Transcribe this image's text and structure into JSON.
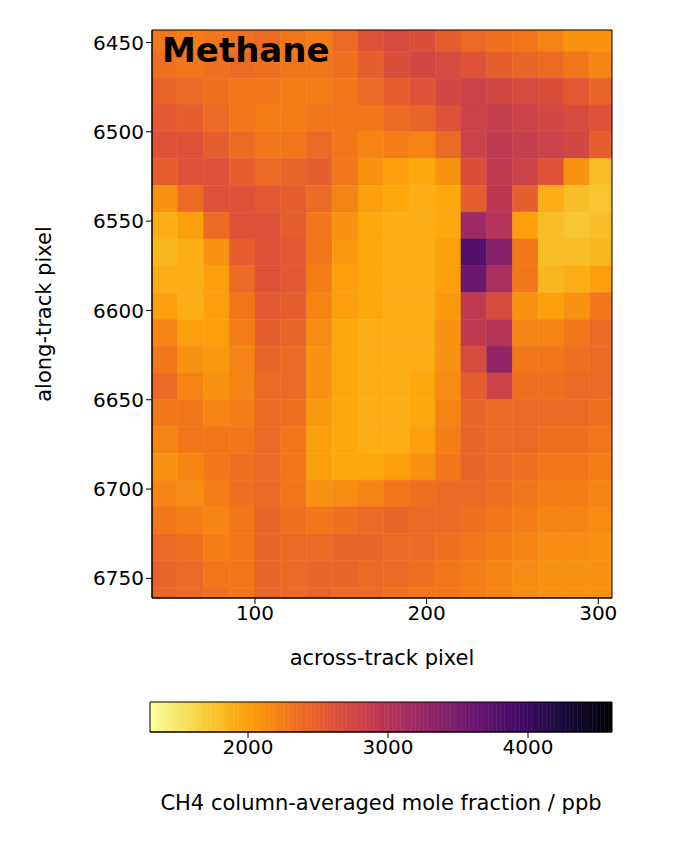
{
  "chart_data": {
    "type": "heatmap",
    "title": "Methane",
    "x_label": "across-track pixel",
    "y_label": "along-track pixel",
    "xlim": [
      40,
      308
    ],
    "xticks": [
      100,
      200,
      300
    ],
    "ylim": [
      6443,
      6761
    ],
    "yticks": [
      6450,
      6500,
      6550,
      6600,
      6650,
      6700,
      6750
    ],
    "cells": {
      "x_edges": [
        40,
        55,
        70,
        85,
        100,
        115,
        130,
        145,
        160,
        175,
        190,
        205,
        220,
        235,
        250,
        265,
        280,
        295,
        310
      ],
      "y_edges": [
        6440,
        6455,
        6470,
        6485,
        6500,
        6515,
        6530,
        6545,
        6560,
        6575,
        6590,
        6605,
        6620,
        6635,
        6650,
        6665,
        6680,
        6695,
        6710,
        6725,
        6740,
        6755,
        6770
      ],
      "values": [
        [
          2300,
          2250,
          2300,
          2350,
          2400,
          2300,
          2250,
          2400,
          2600,
          2700,
          2650,
          2500,
          2400,
          2350,
          2300,
          2200,
          2100,
          2100
        ],
        [
          2350,
          2300,
          2350,
          2400,
          2350,
          2300,
          2300,
          2350,
          2500,
          2650,
          2750,
          2700,
          2600,
          2500,
          2450,
          2400,
          2300,
          2200
        ],
        [
          2450,
          2400,
          2350,
          2300,
          2300,
          2250,
          2250,
          2300,
          2400,
          2500,
          2600,
          2750,
          2800,
          2750,
          2700,
          2650,
          2550,
          2450
        ],
        [
          2550,
          2500,
          2400,
          2300,
          2250,
          2250,
          2300,
          2300,
          2300,
          2400,
          2450,
          2600,
          2800,
          2850,
          2800,
          2750,
          2700,
          2600
        ],
        [
          2600,
          2600,
          2500,
          2400,
          2300,
          2300,
          2400,
          2300,
          2200,
          2250,
          2200,
          2400,
          2800,
          2900,
          2850,
          2800,
          2750,
          2500
        ],
        [
          2500,
          2600,
          2600,
          2500,
          2400,
          2450,
          2500,
          2300,
          2100,
          2000,
          1950,
          2100,
          2650,
          2900,
          2800,
          2600,
          2100,
          1800
        ],
        [
          2100,
          2400,
          2600,
          2600,
          2550,
          2500,
          2400,
          2200,
          2000,
          1950,
          1900,
          1950,
          2500,
          2950,
          2500,
          1900,
          1800,
          1750
        ],
        [
          1900,
          2000,
          2400,
          2600,
          2600,
          2500,
          2300,
          2100,
          1950,
          1900,
          1900,
          1950,
          3200,
          3000,
          2000,
          1800,
          1750,
          1800
        ],
        [
          1850,
          1900,
          2100,
          2500,
          2600,
          2550,
          2300,
          2050,
          1950,
          1900,
          1900,
          2000,
          3800,
          3400,
          2300,
          1800,
          1800,
          1850
        ],
        [
          1900,
          1900,
          2000,
          2400,
          2600,
          2550,
          2250,
          2000,
          1950,
          1900,
          1900,
          2000,
          3600,
          3100,
          2300,
          1850,
          1900,
          2000
        ],
        [
          2000,
          1900,
          2000,
          2300,
          2550,
          2500,
          2200,
          2000,
          1950,
          1900,
          1900,
          2050,
          2900,
          2700,
          2100,
          2000,
          2100,
          2300
        ],
        [
          2200,
          2000,
          2000,
          2250,
          2500,
          2450,
          2150,
          1950,
          1900,
          1900,
          1900,
          2100,
          2900,
          3000,
          2200,
          2200,
          2300,
          2400
        ],
        [
          2300,
          2100,
          2050,
          2200,
          2450,
          2400,
          2100,
          1950,
          1900,
          1900,
          1900,
          2100,
          2700,
          3300,
          2300,
          2300,
          2350,
          2400
        ],
        [
          2400,
          2200,
          2100,
          2200,
          2400,
          2400,
          2100,
          1950,
          1900,
          1900,
          1950,
          2150,
          2500,
          2800,
          2350,
          2350,
          2400,
          2400
        ],
        [
          2300,
          2300,
          2200,
          2250,
          2400,
          2350,
          2050,
          1950,
          1900,
          1900,
          1950,
          2200,
          2450,
          2400,
          2400,
          2400,
          2400,
          2350
        ],
        [
          2200,
          2300,
          2300,
          2300,
          2400,
          2300,
          2000,
          1950,
          1900,
          1900,
          2000,
          2250,
          2450,
          2400,
          2400,
          2350,
          2350,
          2300
        ],
        [
          2100,
          2200,
          2300,
          2350,
          2400,
          2300,
          2000,
          1950,
          1950,
          2000,
          2100,
          2300,
          2450,
          2400,
          2350,
          2300,
          2300,
          2250
        ],
        [
          2200,
          2150,
          2250,
          2350,
          2400,
          2300,
          2100,
          2150,
          2200,
          2300,
          2350,
          2400,
          2400,
          2350,
          2300,
          2250,
          2250,
          2200
        ],
        [
          2300,
          2250,
          2200,
          2300,
          2450,
          2350,
          2300,
          2350,
          2400,
          2450,
          2400,
          2400,
          2350,
          2300,
          2250,
          2200,
          2200,
          2150
        ],
        [
          2400,
          2350,
          2250,
          2300,
          2450,
          2400,
          2400,
          2450,
          2450,
          2400,
          2400,
          2350,
          2300,
          2250,
          2200,
          2150,
          2150,
          2100
        ],
        [
          2450,
          2400,
          2300,
          2300,
          2450,
          2400,
          2450,
          2450,
          2400,
          2400,
          2350,
          2300,
          2250,
          2200,
          2150,
          2100,
          2100,
          2100
        ],
        [
          2450,
          2400,
          2350,
          2300,
          2450,
          2400,
          2450,
          2400,
          2400,
          2350,
          2300,
          2300,
          2250,
          2200,
          2150,
          2100,
          2100,
          2100
        ]
      ]
    },
    "colorbar": {
      "label": "CH4 column-averaged mole fraction / ppb",
      "range": [
        1300,
        4600
      ],
      "ticks": [
        2000,
        3000,
        4000
      ]
    }
  }
}
